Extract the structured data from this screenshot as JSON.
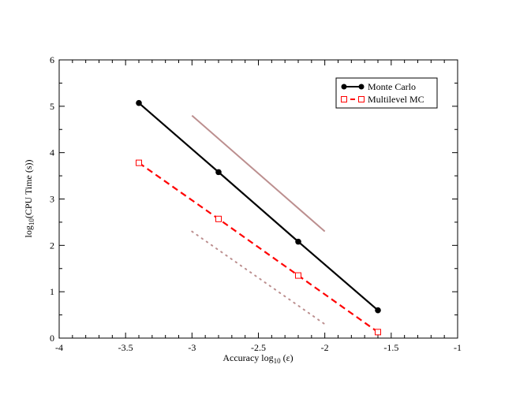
{
  "chart_data": {
    "type": "line",
    "xlabel_prefix": "Accuracy log",
    "xlabel_sub": "10",
    "xlabel_suffix": " (ε)",
    "ylabel_prefix": "log",
    "ylabel_sub": "10",
    "ylabel_suffix": "(CPU Time (s))",
    "xlim": [
      -4,
      -1
    ],
    "ylim": [
      0,
      6
    ],
    "x_ticks": [
      "-4",
      "-3.5",
      "-3",
      "-2.5",
      "-2",
      "-1.5",
      "-1"
    ],
    "x_tick_values": [
      -4,
      -3.5,
      -3,
      -2.5,
      -2,
      -1.5,
      -1
    ],
    "y_ticks": [
      "0",
      "1",
      "2",
      "3",
      "4",
      "5",
      "6"
    ],
    "y_tick_values": [
      0,
      1,
      2,
      3,
      4,
      5,
      6
    ],
    "grid": false,
    "legend_position": "top-right",
    "series": [
      {
        "name": "Monte Carlo",
        "color": "#000000",
        "style": "solid",
        "marker": "circle",
        "x": [
          -3.4,
          -2.8,
          -2.2,
          -1.6
        ],
        "y": [
          5.07,
          3.58,
          2.08,
          0.6
        ]
      },
      {
        "name": "Multilevel MC",
        "color": "#ff0000",
        "style": "dashed",
        "marker": "square",
        "x": [
          -3.4,
          -2.8,
          -2.2,
          -1.6
        ],
        "y": [
          3.78,
          2.57,
          1.35,
          0.13
        ]
      }
    ],
    "reference_lines": [
      {
        "style": "solid",
        "color": "#bc8f8f",
        "x": [
          -3,
          -2
        ],
        "y": [
          4.8,
          2.3
        ]
      },
      {
        "style": "dotted",
        "color": "#bc8f8f",
        "x": [
          -3,
          -2
        ],
        "y": [
          2.3,
          0.3
        ]
      }
    ]
  }
}
